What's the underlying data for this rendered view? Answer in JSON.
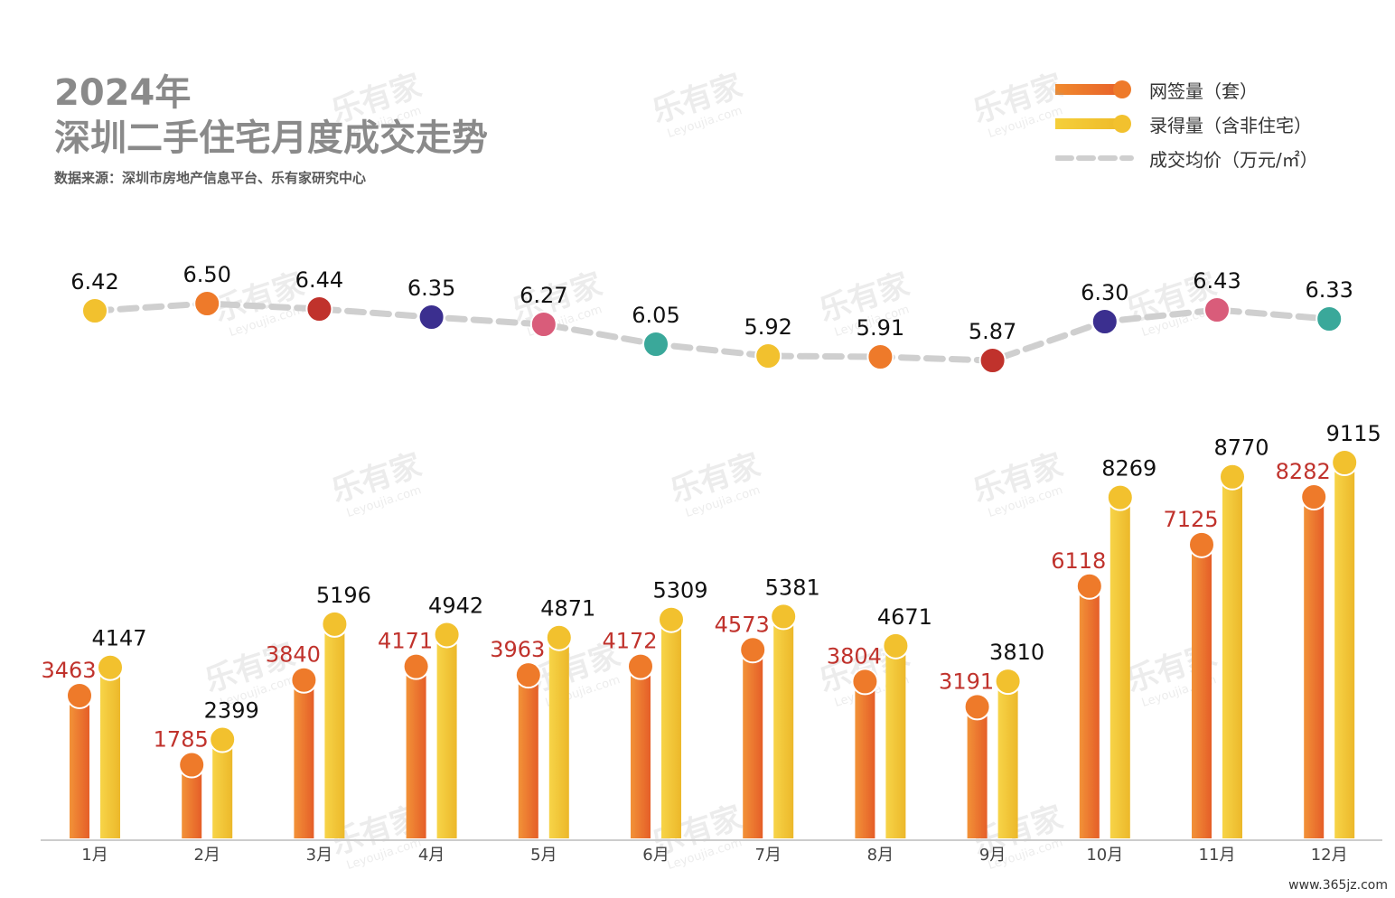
{
  "title": {
    "line1": "2024年",
    "line2": "深圳二手住宅月度成交走势",
    "source": "数据来源：深圳市房地产信息平台、乐有家研究中心"
  },
  "legend": [
    {
      "name": "网签量（套）",
      "style": "bar-orange"
    },
    {
      "name": "录得量（含非住宅）",
      "style": "bar-yellow"
    },
    {
      "name": "成交均价（万元/㎡）",
      "style": "dashed-line"
    }
  ],
  "watermark": "乐有家",
  "watermark_sub": "Leyoujia.com",
  "footer": "www.365jz.com",
  "colors": {
    "orange": "#ee7a2a",
    "yellow": "#f2c12e",
    "line": "#cfcfcf",
    "label_red": "#c0322c",
    "label_black": "#111111",
    "axis": "#cccccc"
  },
  "chart_data": {
    "type": "bar",
    "categories": [
      "1月",
      "2月",
      "3月",
      "4月",
      "5月",
      "6月",
      "7月",
      "8月",
      "9月",
      "10月",
      "11月",
      "12月"
    ],
    "series": [
      {
        "name": "网签量（套）",
        "values": [
          3463,
          1785,
          3840,
          4171,
          3963,
          4172,
          4573,
          3804,
          3191,
          6118,
          7125,
          8282
        ]
      },
      {
        "name": "录得量（含非住宅）",
        "values": [
          4147,
          2399,
          5196,
          4942,
          4871,
          5309,
          5381,
          4671,
          3810,
          8269,
          8770,
          9115
        ]
      },
      {
        "name": "成交均价（万元/㎡）",
        "type": "line",
        "values": [
          6.42,
          6.5,
          6.44,
          6.35,
          6.27,
          6.05,
          5.92,
          5.91,
          5.87,
          6.3,
          6.43,
          6.33
        ],
        "labels": [
          "6.42",
          "6.50",
          "6.44",
          "6.35",
          "6.27",
          "6.05",
          "5.92",
          "5.91",
          "5.87",
          "6.30",
          "6.43",
          "6.33"
        ],
        "dot_colors": [
          "#f2c12e",
          "#ee7a2a",
          "#c0322c",
          "#3b2f8f",
          "#d95c7a",
          "#3aa89a",
          "#f2c12e",
          "#ee7a2a",
          "#c0322c",
          "#3b2f8f",
          "#d95c7a",
          "#3aa89a"
        ]
      }
    ]
  }
}
